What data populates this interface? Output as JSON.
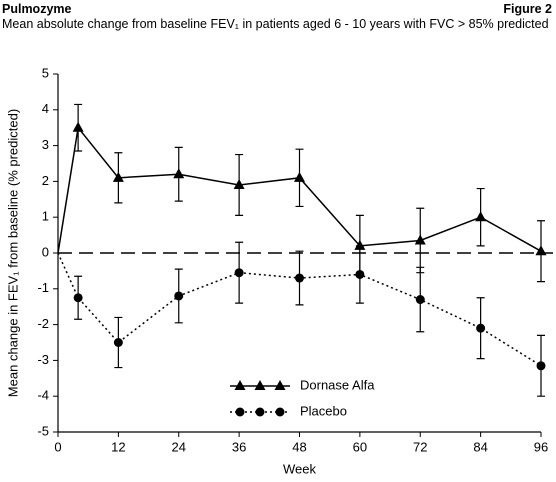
{
  "header": "Pulmozyme",
  "figure": "Figure 2",
  "chart_data": {
    "type": "line",
    "title": "Mean absolute change from baseline FEV₁ in patients aged 6 - 10 years with FVC > 85% predicted",
    "x_label": "Week",
    "y_label": "Mean change in FEV₁ from baseline (% predicted)",
    "x": [
      0,
      4,
      12,
      24,
      36,
      48,
      60,
      72,
      84,
      96
    ],
    "series": [
      {
        "name": "Dornase Alfa",
        "color": "#000000",
        "marker": "triangle",
        "dash": "solid",
        "values": [
          0,
          3.5,
          2.1,
          2.2,
          1.9,
          2.1,
          0.2,
          0.35,
          1.0,
          0.05
        ],
        "errors": [
          null,
          0.65,
          0.7,
          0.75,
          0.85,
          0.8,
          0.85,
          0.9,
          0.8,
          0.85
        ]
      },
      {
        "name": "Placebo",
        "color": "#000000",
        "marker": "circle",
        "dash": "dotted",
        "values": [
          0,
          -1.25,
          -2.5,
          -1.2,
          -0.55,
          -0.7,
          -0.6,
          -1.3,
          -2.1,
          -3.15
        ],
        "errors": [
          null,
          0.6,
          0.7,
          0.75,
          0.85,
          0.75,
          0.8,
          0.9,
          0.85,
          0.85
        ]
      }
    ],
    "reference_line": 0,
    "xlim": [
      0,
      96
    ],
    "xticks": [
      0,
      12,
      24,
      36,
      48,
      60,
      72,
      84,
      96
    ],
    "ylim": [
      -5,
      5
    ],
    "yticks": [
      -5,
      -4,
      -3,
      -2,
      -1,
      0,
      1,
      2,
      3,
      4,
      5
    ],
    "grid": false,
    "legend": "lower center"
  }
}
